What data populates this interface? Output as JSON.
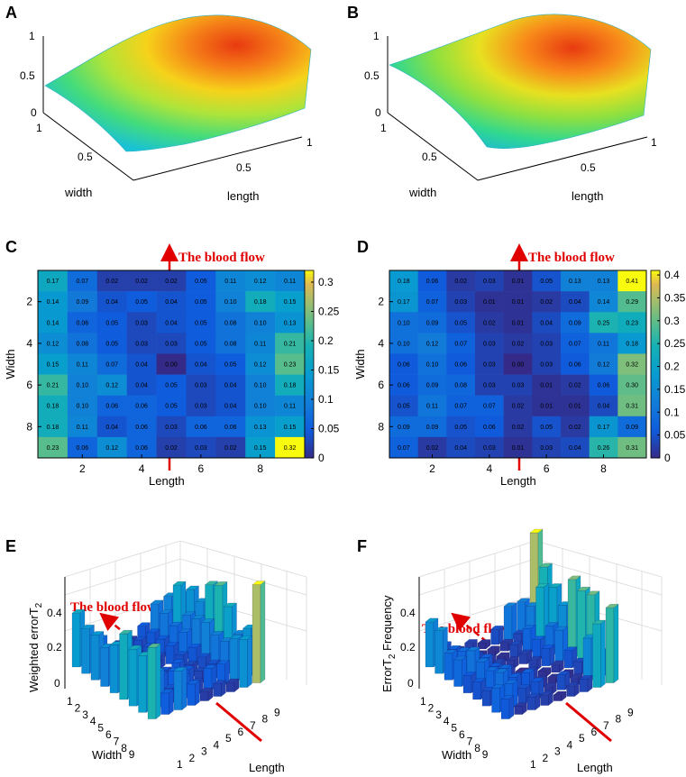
{
  "panels": {
    "A": {
      "label": "A",
      "zticks": [
        "0",
        "0.5",
        "1"
      ],
      "wticks": [
        "0.5",
        "1"
      ],
      "lticks": [
        "0.5",
        "1"
      ],
      "width_label": "width",
      "length_label": "length"
    },
    "B": {
      "label": "B",
      "zticks": [
        "0",
        "0.5",
        "1"
      ],
      "wticks": [
        "0.5",
        "1"
      ],
      "lticks": [
        "0.5",
        "1"
      ],
      "width_label": "width",
      "length_label": "length"
    },
    "E": {
      "label": "E",
      "zlabel": "Weighted errorT",
      "zlabel_sub": "2",
      "zticks": [
        "0",
        "0.2",
        "0.4"
      ],
      "width_label": "Width",
      "length_label": "Length",
      "flow": "The blood flow"
    },
    "F": {
      "label": "F",
      "zlabel": "ErrorT",
      "zlabel_sub": "2",
      "zlabel_after": " Frequency",
      "zticks": [
        "0",
        "0.2",
        "0.4"
      ],
      "width_label": "Width",
      "length_label": "Length",
      "flow": "The blood flow"
    }
  },
  "chart_data": [
    {
      "id": "C",
      "type": "heatmap",
      "title": "C",
      "annotation": "The blood flow",
      "xlabel": "Length",
      "ylabel": "Width",
      "xticks": [
        "2",
        "4",
        "6",
        "8"
      ],
      "yticks": [
        "2",
        "4",
        "6",
        "8"
      ],
      "colorbar": {
        "min": 0,
        "max": 0.32,
        "ticks": [
          "0",
          "0.05",
          "0.1",
          "0.15",
          "0.2",
          "0.25",
          "0.3"
        ]
      },
      "matrix": [
        [
          "0.17",
          "0.07",
          "0.02",
          "0.02",
          "0.02",
          "0.05",
          "0.11",
          "0.12",
          "0.11"
        ],
        [
          "0.14",
          "0.09",
          "0.04",
          "0.05",
          "0.04",
          "0.05",
          "0.10",
          "0.18",
          "0.15"
        ],
        [
          "0.14",
          "0.06",
          "0.05",
          "0.03",
          "0.04",
          "0.05",
          "0.08",
          "0.10",
          "0.13"
        ],
        [
          "0.12",
          "0.08",
          "0.05",
          "0.03",
          "0.03",
          "0.05",
          "0.08",
          "0.11",
          "0.21"
        ],
        [
          "0.15",
          "0.11",
          "0.07",
          "0.04",
          "0.00",
          "0.04",
          "0.05",
          "0.12",
          "0.23"
        ],
        [
          "0.21",
          "0.10",
          "0.12",
          "0.04",
          "0.05",
          "0.03",
          "0.04",
          "0.10",
          "0.18"
        ],
        [
          "0.18",
          "0.10",
          "0.06",
          "0.06",
          "0.05",
          "0.03",
          "0.04",
          "0.10",
          "0.11"
        ],
        [
          "0.18",
          "0.11",
          "0.04",
          "0.06",
          "0.03",
          "0.06",
          "0.06",
          "0.13",
          "0.15"
        ],
        [
          "0.23",
          "0.06",
          "0.12",
          "0.06",
          "0.02",
          "0.03",
          "0.02",
          "0.15",
          "0.32"
        ]
      ]
    },
    {
      "id": "D",
      "type": "heatmap",
      "title": "D",
      "annotation": "The blood flow",
      "xlabel": "Length",
      "ylabel": "Width",
      "xticks": [
        "2",
        "4",
        "6",
        "8"
      ],
      "yticks": [
        "2",
        "4",
        "6",
        "8"
      ],
      "colorbar": {
        "min": 0,
        "max": 0.41,
        "ticks": [
          "0",
          "0.05",
          "0.1",
          "0.15",
          "0.2",
          "0.25",
          "0.3",
          "0.35",
          "0.4"
        ]
      },
      "matrix": [
        [
          "0.18",
          "0.06",
          "0.02",
          "0.03",
          "0.01",
          "0.05",
          "0.13",
          "0.13",
          "0.41"
        ],
        [
          "0.17",
          "0.07",
          "0.03",
          "0.01",
          "0.01",
          "0.02",
          "0.04",
          "0.14",
          "0.29"
        ],
        [
          "0.10",
          "0.09",
          "0.05",
          "0.02",
          "0.01",
          "0.04",
          "0.09",
          "0.25",
          "0.23"
        ],
        [
          "0.10",
          "0.12",
          "0.07",
          "0.03",
          "0.02",
          "0.03",
          "0.07",
          "0.11",
          "0.18"
        ],
        [
          "0.06",
          "0.10",
          "0.06",
          "0.03",
          "0.00",
          "0.03",
          "0.06",
          "0.12",
          "0.32"
        ],
        [
          "0.06",
          "0.09",
          "0.08",
          "0.03",
          "0.03",
          "0.01",
          "0.02",
          "0.06",
          "0.30"
        ],
        [
          "0.05",
          "0.11",
          "0.07",
          "0.07",
          "0.02",
          "0.01",
          "0.01",
          "0.04",
          "0.31"
        ],
        [
          "0.09",
          "0.09",
          "0.05",
          "0.06",
          "0.02",
          "0.05",
          "0.02",
          "0.17",
          "0.09"
        ],
        [
          "0.07",
          "0.02",
          "0.04",
          "0.03",
          "0.01",
          "0.03",
          "0.04",
          "0.26",
          "0.31"
        ]
      ]
    }
  ]
}
